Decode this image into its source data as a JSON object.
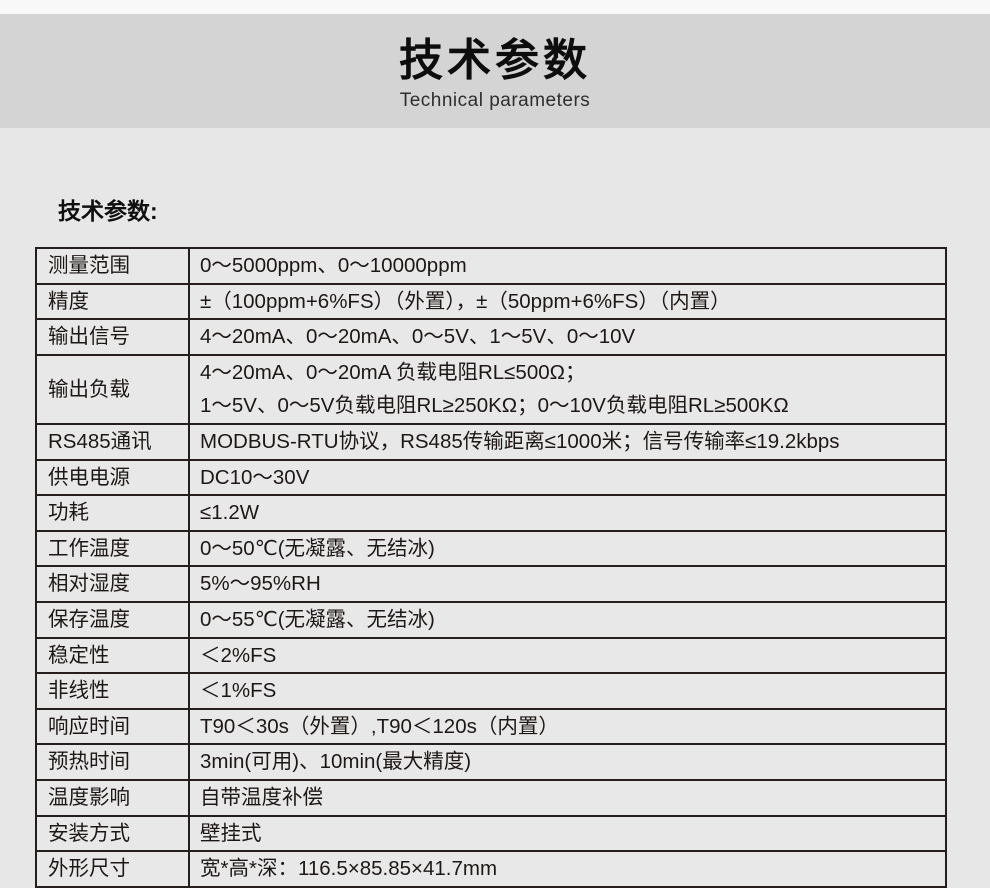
{
  "page": {
    "header": {
      "title": "技术参数",
      "subtitle": "Technical parameters"
    },
    "section_heading": "技术参数:"
  },
  "colors": {
    "top_strip": "#f8f8f8",
    "title_band": "#d5d4d5",
    "body_background": "#e8e7e8",
    "table_border": "#241e1c",
    "text": "#1d1816"
  },
  "table": {
    "rows": [
      {
        "label": "测量范围",
        "value_lines": [
          "0～5000ppm、0～10000ppm"
        ]
      },
      {
        "label": "精度",
        "value_lines": [
          "±（100ppm+6%FS）（外置），±（50ppm+6%FS）（内置）"
        ]
      },
      {
        "label": "输出信号",
        "value_lines": [
          "4～20mA、0～20mA、0～5V、1～5V、0～10V"
        ]
      },
      {
        "label": "输出负载",
        "value_lines": [
          "4～20mA、0～20mA 负载电阻RL≤500Ω；",
          "1～5V、0～5V负载电阻RL≥250KΩ；0～10V负载电阻RL≥500KΩ"
        ]
      },
      {
        "label": "RS485通讯",
        "value_lines": [
          "MODBUS-RTU协议，RS485传输距离≤1000米；信号传输率≤19.2kbps"
        ]
      },
      {
        "label": "供电电源",
        "value_lines": [
          "DC10～30V"
        ]
      },
      {
        "label": "功耗",
        "value_lines": [
          "≤1.2W"
        ]
      },
      {
        "label": "工作温度",
        "value_lines": [
          "0～50℃(无凝露、无结冰)"
        ]
      },
      {
        "label": "相对湿度",
        "value_lines": [
          "5%～95%RH"
        ]
      },
      {
        "label": "保存温度",
        "value_lines": [
          "0～55℃(无凝露、无结冰)"
        ]
      },
      {
        "label": "稳定性",
        "value_lines": [
          "＜2%FS"
        ]
      },
      {
        "label": "非线性",
        "value_lines": [
          "＜1%FS"
        ]
      },
      {
        "label": "响应时间",
        "value_lines": [
          "T90＜30s（外置）,T90＜120s（内置）"
        ]
      },
      {
        "label": "预热时间",
        "value_lines": [
          "3min(可用)、10min(最大精度)"
        ]
      },
      {
        "label": "温度影响",
        "value_lines": [
          "自带温度补偿"
        ]
      },
      {
        "label": "安装方式",
        "value_lines": [
          "壁挂式"
        ]
      },
      {
        "label": "外形尺寸",
        "value_lines": [
          "宽*高*深：116.5×85.85×41.7mm"
        ]
      }
    ]
  }
}
